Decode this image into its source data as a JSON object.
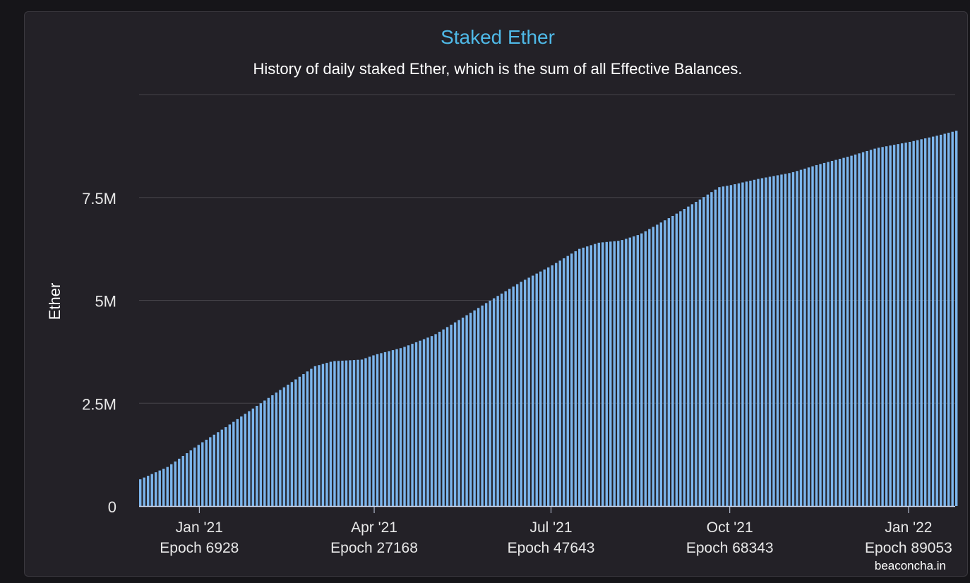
{
  "chart_data": {
    "type": "bar",
    "title": "Staked Ether",
    "subtitle": "History of daily staked Ether, which is the sum of all Effective Balances.",
    "ylabel": "Ether",
    "xlabel": "",
    "credits": "beaconcha.in",
    "ylim": [
      0,
      10000000
    ],
    "grid": true,
    "legend": "none",
    "y_ticks": [
      {
        "value": 0,
        "label": "0"
      },
      {
        "value": 2500000,
        "label": "2.5M"
      },
      {
        "value": 5000000,
        "label": "5M"
      },
      {
        "value": 7500000,
        "label": "7.5M"
      },
      {
        "value": 10000000,
        "label": ""
      }
    ],
    "x_ticks": [
      {
        "date": "2021-01-01",
        "label": "Jan '21",
        "epoch_label": "Epoch 6928"
      },
      {
        "date": "2021-04-01",
        "label": "Apr '21",
        "epoch_label": "Epoch 27168"
      },
      {
        "date": "2021-07-01",
        "label": "Jul '21",
        "epoch_label": "Epoch 47643"
      },
      {
        "date": "2021-10-01",
        "label": "Oct '21",
        "epoch_label": "Epoch 68343"
      },
      {
        "date": "2022-01-01",
        "label": "Jan '22",
        "epoch_label": "Epoch 89053"
      }
    ],
    "x_range": [
      "2020-12-01",
      "2022-01-25"
    ],
    "series": [
      {
        "color": "#7cb5ec",
        "points": [
          {
            "date": "2020-12-01",
            "value": 650000
          },
          {
            "date": "2020-12-15",
            "value": 950000
          },
          {
            "date": "2021-01-01",
            "value": 1520000
          },
          {
            "date": "2021-01-15",
            "value": 1950000
          },
          {
            "date": "2021-02-01",
            "value": 2500000
          },
          {
            "date": "2021-02-15",
            "value": 2950000
          },
          {
            "date": "2021-03-01",
            "value": 3400000
          },
          {
            "date": "2021-03-10",
            "value": 3520000
          },
          {
            "date": "2021-03-25",
            "value": 3560000
          },
          {
            "date": "2021-04-01",
            "value": 3680000
          },
          {
            "date": "2021-04-15",
            "value": 3850000
          },
          {
            "date": "2021-05-01",
            "value": 4150000
          },
          {
            "date": "2021-05-15",
            "value": 4550000
          },
          {
            "date": "2021-06-01",
            "value": 5050000
          },
          {
            "date": "2021-06-15",
            "value": 5450000
          },
          {
            "date": "2021-07-01",
            "value": 5850000
          },
          {
            "date": "2021-07-15",
            "value": 6250000
          },
          {
            "date": "2021-07-25",
            "value": 6400000
          },
          {
            "date": "2021-08-05",
            "value": 6450000
          },
          {
            "date": "2021-08-15",
            "value": 6600000
          },
          {
            "date": "2021-09-01",
            "value": 7050000
          },
          {
            "date": "2021-09-15",
            "value": 7450000
          },
          {
            "date": "2021-09-25",
            "value": 7750000
          },
          {
            "date": "2021-10-01",
            "value": 7800000
          },
          {
            "date": "2021-10-15",
            "value": 7950000
          },
          {
            "date": "2021-11-01",
            "value": 8100000
          },
          {
            "date": "2021-11-15",
            "value": 8300000
          },
          {
            "date": "2021-12-01",
            "value": 8500000
          },
          {
            "date": "2021-12-15",
            "value": 8700000
          },
          {
            "date": "2022-01-01",
            "value": 8850000
          },
          {
            "date": "2022-01-15",
            "value": 9000000
          },
          {
            "date": "2022-01-25",
            "value": 9120000
          }
        ]
      }
    ]
  },
  "colors": {
    "background": "#161519",
    "panel": "#232127",
    "title": "#4fb9e7",
    "text": "#ffffff",
    "axis_text": "#e8e8e8",
    "grid": "#46444a",
    "bar": "#7cb5ec"
  }
}
